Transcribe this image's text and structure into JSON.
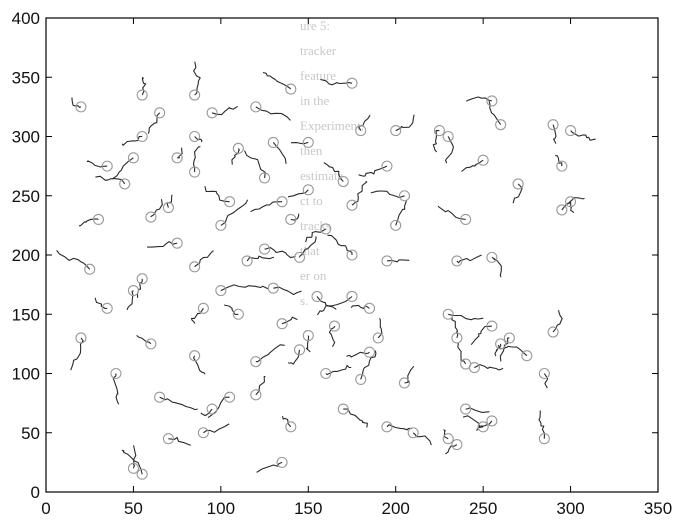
{
  "chart_data": {
    "type": "scatter",
    "title": "",
    "xlabel": "",
    "ylabel": "",
    "xlim": [
      0,
      350
    ],
    "ylim": [
      0,
      400
    ],
    "x_ticks": [
      0,
      50,
      100,
      150,
      200,
      250,
      300,
      350
    ],
    "y_ticks": [
      0,
      50,
      100,
      150,
      200,
      250,
      300,
      350,
      400
    ],
    "grid": false,
    "legend": "none",
    "marker": "open-circle",
    "colors": {
      "marker": "#9a9a9a",
      "track": "#2a2a2a",
      "frame": "#000000",
      "background": "#ffffff"
    },
    "series": [
      {
        "points": [
          [
            20,
            325
          ],
          [
            35,
            275
          ],
          [
            30,
            230
          ],
          [
            25,
            188
          ],
          [
            50,
            170
          ],
          [
            35,
            155
          ],
          [
            20,
            130
          ],
          [
            40,
            100
          ],
          [
            55,
            15
          ],
          [
            50,
            20
          ],
          [
            55,
            335
          ],
          [
            65,
            320
          ],
          [
            55,
            300
          ],
          [
            50,
            282
          ],
          [
            45,
            260
          ],
          [
            60,
            232
          ],
          [
            55,
            180
          ],
          [
            60,
            125
          ],
          [
            65,
            80
          ],
          [
            70,
            45
          ],
          [
            85,
            335
          ],
          [
            95,
            320
          ],
          [
            85,
            300
          ],
          [
            75,
            282
          ],
          [
            85,
            270
          ],
          [
            70,
            240
          ],
          [
            75,
            210
          ],
          [
            85,
            190
          ],
          [
            90,
            155
          ],
          [
            85,
            115
          ],
          [
            95,
            70
          ],
          [
            90,
            50
          ],
          [
            105,
            80
          ],
          [
            110,
            290
          ],
          [
            105,
            245
          ],
          [
            100,
            225
          ],
          [
            115,
            195
          ],
          [
            100,
            170
          ],
          [
            110,
            150
          ],
          [
            120,
            110
          ],
          [
            120,
            325
          ],
          [
            140,
            340
          ],
          [
            130,
            295
          ],
          [
            125,
            265
          ],
          [
            135,
            245
          ],
          [
            140,
            230
          ],
          [
            125,
            205
          ],
          [
            130,
            172
          ],
          [
            135,
            142
          ],
          [
            120,
            82
          ],
          [
            150,
            295
          ],
          [
            150,
            255
          ],
          [
            160,
            222
          ],
          [
            145,
            198
          ],
          [
            155,
            165
          ],
          [
            150,
            132
          ],
          [
            145,
            120
          ],
          [
            140,
            55
          ],
          [
            135,
            25
          ],
          [
            160,
            100
          ],
          [
            175,
            345
          ],
          [
            180,
            305
          ],
          [
            170,
            262
          ],
          [
            175,
            242
          ],
          [
            175,
            200
          ],
          [
            175,
            165
          ],
          [
            165,
            140
          ],
          [
            185,
            118
          ],
          [
            180,
            95
          ],
          [
            170,
            70
          ],
          [
            200,
            305
          ],
          [
            195,
            275
          ],
          [
            205,
            250
          ],
          [
            200,
            225
          ],
          [
            195,
            195
          ],
          [
            185,
            155
          ],
          [
            190,
            130
          ],
          [
            205,
            92
          ],
          [
            195,
            55
          ],
          [
            210,
            50
          ],
          [
            225,
            305
          ],
          [
            230,
            300
          ],
          [
            240,
            230
          ],
          [
            235,
            195
          ],
          [
            230,
            150
          ],
          [
            235,
            130
          ],
          [
            240,
            108
          ],
          [
            245,
            105
          ],
          [
            240,
            70
          ],
          [
            235,
            40
          ],
          [
            255,
            330
          ],
          [
            260,
            310
          ],
          [
            250,
            280
          ],
          [
            270,
            260
          ],
          [
            255,
            198
          ],
          [
            255,
            140
          ],
          [
            260,
            125
          ],
          [
            250,
            55
          ],
          [
            230,
            45
          ],
          [
            285,
            45
          ],
          [
            290,
            310
          ],
          [
            300,
            305
          ],
          [
            295,
            275
          ],
          [
            300,
            245
          ],
          [
            295,
            238
          ],
          [
            290,
            135
          ],
          [
            285,
            100
          ],
          [
            265,
            130
          ],
          [
            275,
            115
          ],
          [
            255,
            60
          ]
        ]
      }
    ],
    "background_text": [
      "ure 5: ",
      "tracker ",
      "feature ",
      "in the ",
      "Experiment, ",
      "then ",
      "estimate ",
      "ct to ",
      "tracks ",
      "that ",
      "er on ",
      "s."
    ]
  }
}
